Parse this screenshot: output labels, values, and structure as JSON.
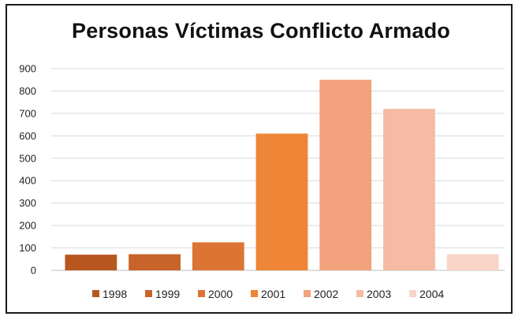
{
  "chart_data": {
    "type": "bar",
    "title": "Personas Víctimas Conflicto Armado",
    "xlabel": "",
    "ylabel": "",
    "categories": [
      "1998",
      "1999",
      "2000",
      "2001",
      "2002",
      "2003",
      "2004"
    ],
    "values": [
      70,
      72,
      125,
      610,
      850,
      720,
      72
    ],
    "colors": [
      "#b8561f",
      "#c8632a",
      "#dc7533",
      "#ee8537",
      "#f2a27c",
      "#f5bba4",
      "#f8d5c7"
    ],
    "ylim": [
      0,
      900
    ],
    "yticks": [
      0,
      100,
      200,
      300,
      400,
      500,
      600,
      700,
      800,
      900
    ],
    "grid": true,
    "legend": "bottom"
  }
}
